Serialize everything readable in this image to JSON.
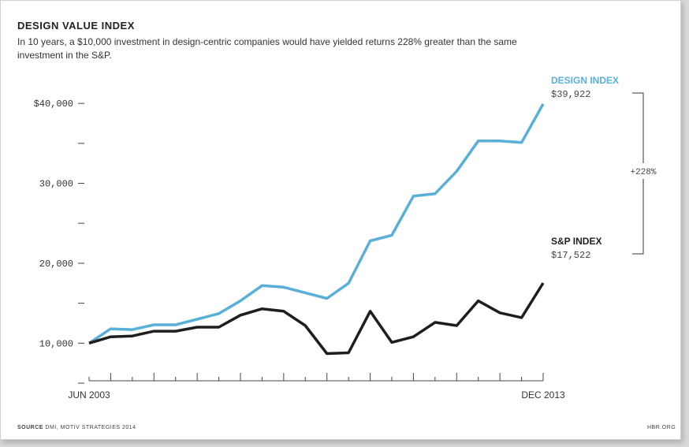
{
  "chart_data": {
    "type": "line",
    "title": "DESIGN VALUE INDEX",
    "subtitle": "In 10 years, a $10,000 investment in design-centric companies would have yielded returns 228% greater than the same investment in the S&P.",
    "x_start_label": "JUN 2003",
    "x_end_label": "DEC 2013",
    "y_ticks": [
      {
        "value": 40000,
        "label": "$40,000"
      },
      {
        "value": 35000,
        "label": ""
      },
      {
        "value": 30000,
        "label": "30,000"
      },
      {
        "value": 25000,
        "label": ""
      },
      {
        "value": 20000,
        "label": "20,000"
      },
      {
        "value": 15000,
        "label": ""
      },
      {
        "value": 10000,
        "label": "10,000"
      },
      {
        "value": 5000,
        "label": ""
      }
    ],
    "ylim": [
      5000,
      41000
    ],
    "x_count": 22,
    "series": [
      {
        "name": "DESIGN INDEX",
        "end_label": "$39,922",
        "color": "#5aafd8",
        "values": [
          10000,
          11800,
          11700,
          12300,
          12300,
          13000,
          13700,
          15300,
          17200,
          17000,
          16300,
          15600,
          17500,
          22800,
          23500,
          28400,
          28700,
          31500,
          35300,
          35300,
          35100,
          39922
        ]
      },
      {
        "name": "S&P INDEX",
        "end_label": "$17,522",
        "color": "#1e1e1e",
        "values": [
          10000,
          10800,
          10900,
          11500,
          11500,
          12000,
          12000,
          13500,
          14300,
          14000,
          12200,
          8700,
          8800,
          14000,
          10100,
          10800,
          12600,
          12200,
          15300,
          13800,
          13200,
          17522
        ]
      }
    ],
    "bracket_label": "+228%",
    "source_label": "SOURCE",
    "source_text": "DMI, MOTIV STRATEGIES 2014",
    "credit": "HBR.ORG"
  }
}
